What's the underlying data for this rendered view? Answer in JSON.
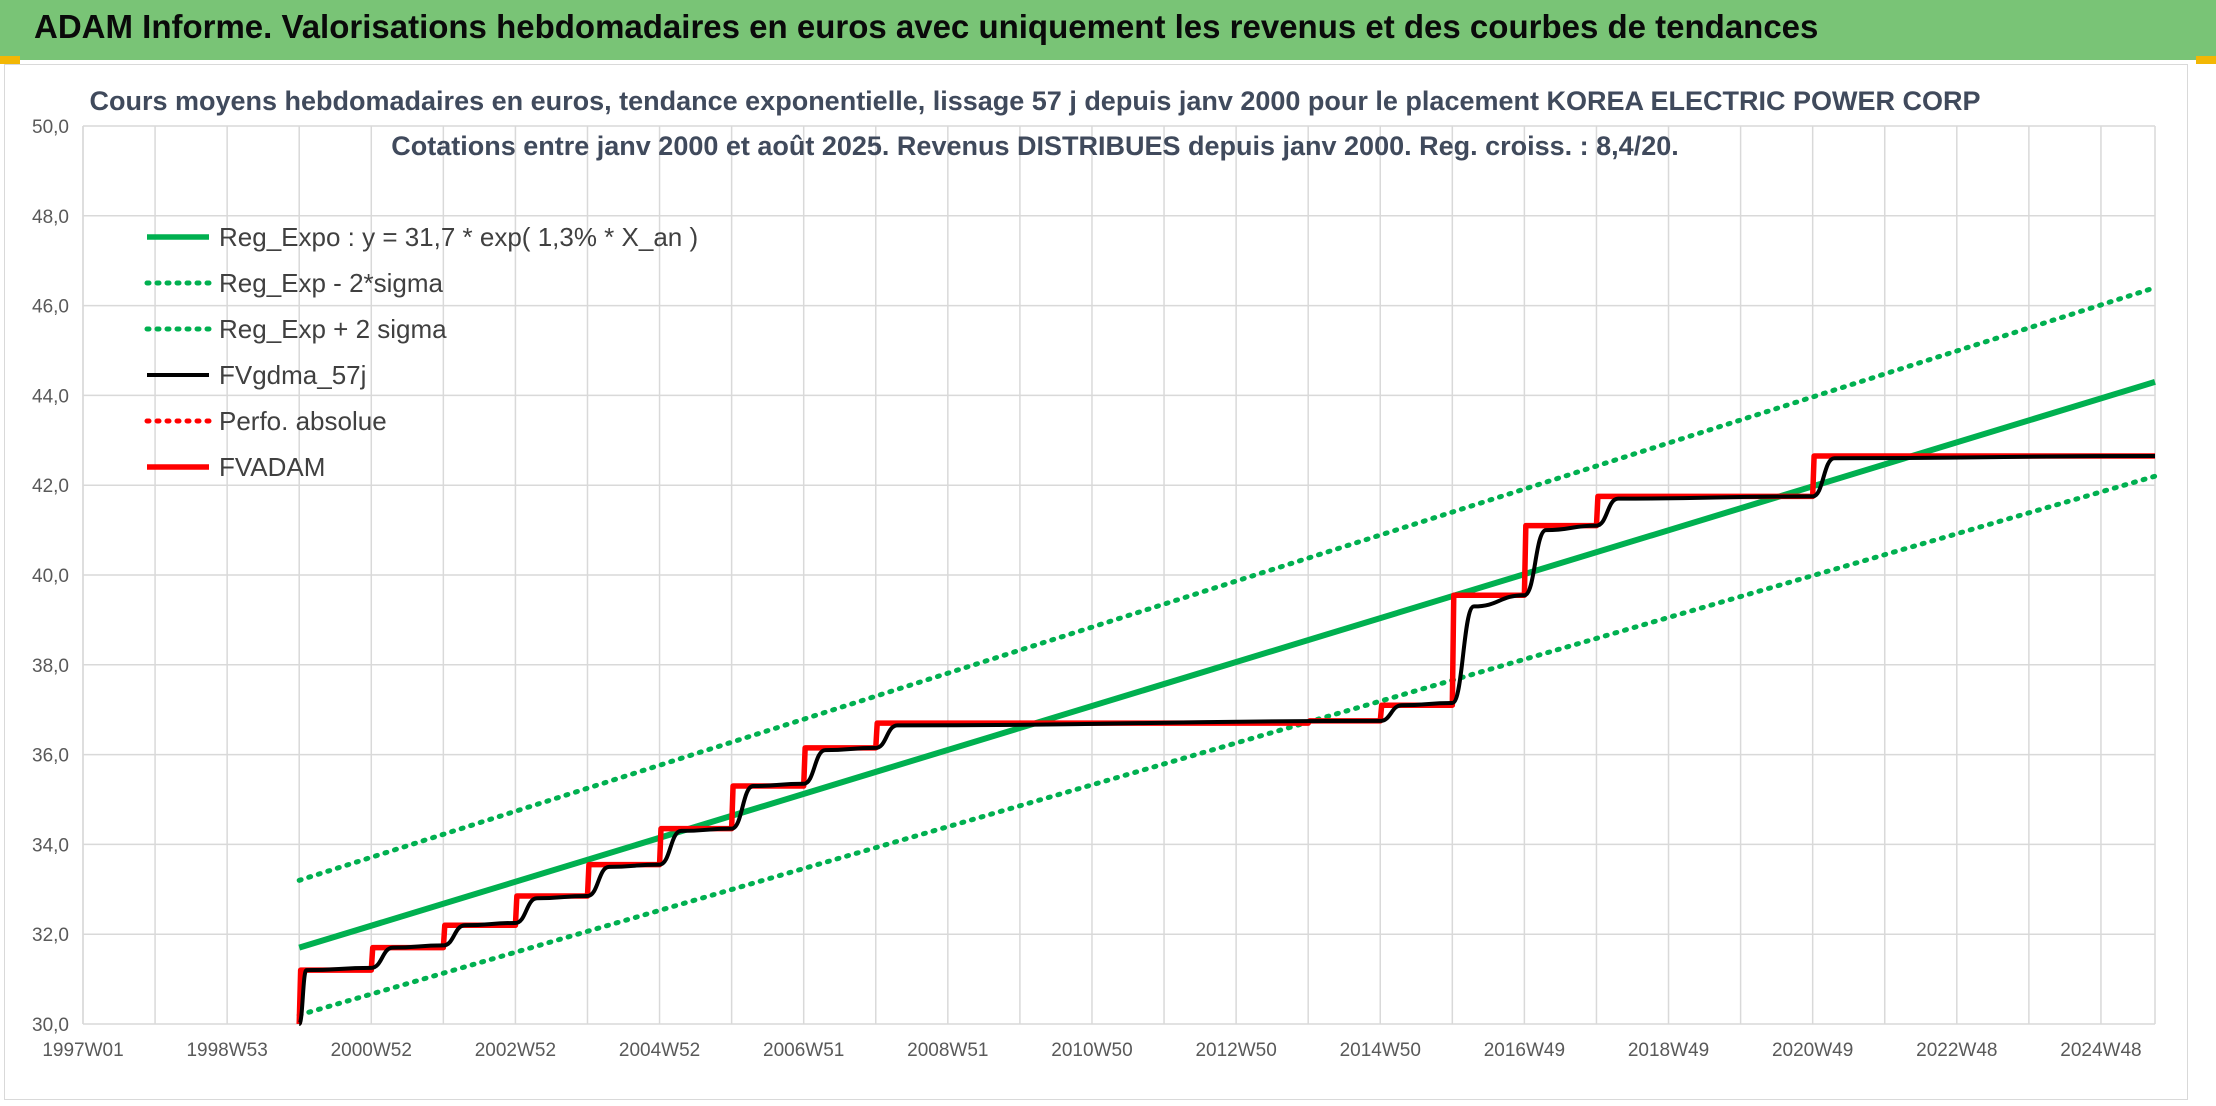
{
  "banner": {
    "title": "ADAM Informe. Valorisations hebdomadaires en euros avec uniquement les revenus et des courbes de tendances",
    "background": "#79c476"
  },
  "colors": {
    "reg_expo": "#00b050",
    "fvgdma": "#000000",
    "fvadam": "#ff0000",
    "gridline": "#d9d9d9"
  },
  "chart_data": {
    "type": "line",
    "title": "Cours moyens hebdomadaires en euros, tendance exponentielle, lissage 57 j depuis janv 2000 pour le placement KOREA ELECTRIC POWER CORP",
    "subtitle": "Cotations entre janv 2000 et août 2025. Revenus DISTRIBUES depuis janv 2000. Reg. croiss. : 8,4/20.",
    "xlabel": "",
    "ylabel": "",
    "xlim": [
      1997.0,
      2025.75
    ],
    "ylim": [
      30.0,
      50.0
    ],
    "grid": true,
    "legend_position": "top-left",
    "x_tick_labels": [
      "1997W01",
      "1998W53",
      "2000W52",
      "2002W52",
      "2004W52",
      "2006W51",
      "2008W51",
      "2010W50",
      "2012W50",
      "2014W50",
      "2016W49",
      "2018W49",
      "2020W49",
      "2022W48",
      "2024W48"
    ],
    "x_tick_values": [
      1997.0,
      1999.0,
      2001.0,
      2003.0,
      2005.0,
      2007.0,
      2009.0,
      2011.0,
      2013.0,
      2015.0,
      2017.0,
      2019.0,
      2021.0,
      2023.0,
      2025.0
    ],
    "y_tick_labels": [
      "30,0",
      "32,0",
      "34,0",
      "36,0",
      "38,0",
      "40,0",
      "42,0",
      "44,0",
      "46,0",
      "48,0",
      "50,0"
    ],
    "y_tick_values": [
      30,
      32,
      34,
      36,
      38,
      40,
      42,
      44,
      46,
      48,
      50
    ],
    "series": [
      {
        "name": "Reg_Expo : y = 31,7 * exp( 1,3% *  X_an )",
        "style": "solid-thick",
        "color": "#00b050",
        "x": [
          2000.0,
          2025.75
        ],
        "y": [
          31.7,
          44.3
        ]
      },
      {
        "name": "Reg_Exp - 2*sigma",
        "style": "dotted",
        "color": "#00b050",
        "x": [
          2000.0,
          2025.75
        ],
        "y": [
          30.2,
          42.2
        ]
      },
      {
        "name": "Reg_Exp + 2 sigma",
        "style": "dotted",
        "color": "#00b050",
        "x": [
          2000.0,
          2025.75
        ],
        "y": [
          33.2,
          46.4
        ]
      },
      {
        "name": "FVgdma_57j",
        "style": "solid",
        "color": "#000000",
        "x": [
          2000.0,
          2000.1,
          2001.0,
          2001.3,
          2002.0,
          2002.3,
          2003.0,
          2003.3,
          2004.0,
          2004.3,
          2005.0,
          2005.3,
          2006.0,
          2006.3,
          2007.0,
          2007.3,
          2008.0,
          2008.3,
          2015.0,
          2015.3,
          2016.0,
          2016.3,
          2017.0,
          2017.3,
          2018.0,
          2018.3,
          2021.0,
          2021.3,
          2025.75
        ],
        "y": [
          30.0,
          31.2,
          31.25,
          31.7,
          31.75,
          32.2,
          32.25,
          32.8,
          32.85,
          33.5,
          33.55,
          34.3,
          34.35,
          35.3,
          35.35,
          36.1,
          36.15,
          36.65,
          36.75,
          37.1,
          37.15,
          39.3,
          39.55,
          41.0,
          41.1,
          41.7,
          41.75,
          42.6,
          42.65
        ]
      },
      {
        "name": "Perfo. absolue",
        "style": "dotted",
        "color": "#ff0000",
        "x": [],
        "y": []
      },
      {
        "name": "FVADAM",
        "style": "step-thick",
        "color": "#ff0000",
        "x": [
          2000.0,
          2000.02,
          2001.0,
          2001.02,
          2002.0,
          2002.02,
          2003.0,
          2003.02,
          2004.0,
          2004.02,
          2005.0,
          2005.02,
          2006.0,
          2006.02,
          2007.0,
          2007.02,
          2008.0,
          2008.02,
          2014.0,
          2014.02,
          2015.0,
          2015.02,
          2016.0,
          2016.02,
          2017.0,
          2017.02,
          2018.0,
          2018.02,
          2021.0,
          2021.02,
          2025.75
        ],
        "y": [
          30.0,
          31.2,
          31.2,
          31.7,
          31.7,
          32.2,
          32.2,
          32.85,
          32.85,
          33.55,
          33.55,
          34.35,
          34.35,
          35.3,
          35.3,
          36.15,
          36.15,
          36.7,
          36.7,
          36.75,
          36.75,
          37.1,
          37.1,
          39.55,
          39.55,
          41.1,
          41.1,
          41.75,
          41.75,
          42.65,
          42.65
        ]
      }
    ]
  }
}
